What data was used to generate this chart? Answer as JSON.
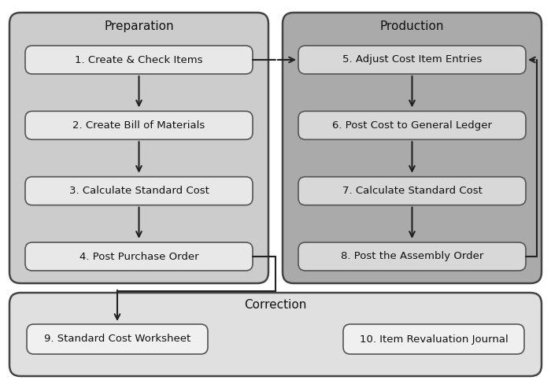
{
  "background_color": "#ffffff",
  "prep_label": "Preparation",
  "prod_label": "Production",
  "corr_label": "Correction",
  "prep_bg": "#cccccc",
  "prod_bg": "#aaaaaa",
  "corr_bg": "#e0e0e0",
  "prep_box_fill": "#e8e8e8",
  "prod_box_fill": "#d8d8d8",
  "corr_box_fill": "#f0f0f0",
  "border_color": "#444444",
  "arrow_color": "#222222",
  "text_color": "#111111",
  "prep_steps": [
    "1. Create & Check Items",
    "2. Create Bill of Materials",
    "3. Calculate Standard Cost",
    "4. Post Purchase Order"
  ],
  "prod_steps": [
    "5. Adjust Cost Item Entries",
    "6. Post Cost to General Ledger",
    "7. Calculate Standard Cost",
    "8. Post the Assembly Order"
  ],
  "corr_steps": [
    "9. Standard Cost Worksheet",
    "10. Item Revaluation Journal"
  ],
  "fig_w": 7.0,
  "fig_h": 4.88,
  "dpi": 100
}
